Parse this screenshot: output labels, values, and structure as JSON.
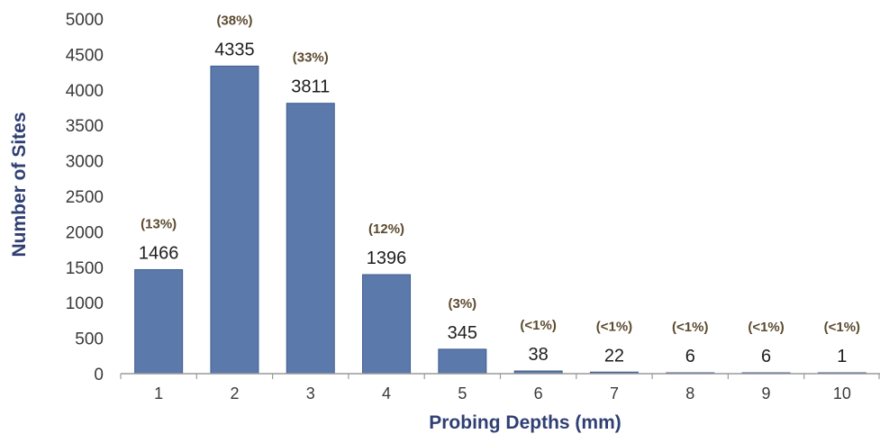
{
  "chart_data": {
    "type": "bar",
    "categories": [
      "1",
      "2",
      "3",
      "4",
      "5",
      "6",
      "7",
      "8",
      "9",
      "10"
    ],
    "values": [
      1466,
      4335,
      3811,
      1396,
      345,
      38,
      22,
      6,
      6,
      1
    ],
    "value_labels": [
      "1466",
      "4335",
      "3811",
      "1396",
      "345",
      "38",
      "22",
      "6",
      "6",
      "1"
    ],
    "percent_labels": [
      "(13%)",
      "(38%)",
      "(33%)",
      "(12%)",
      "(3%)",
      "(<1%)",
      "(<1%)",
      "(<1%)",
      "(<1%)",
      "(<1%)"
    ],
    "xlabel": "Probing Depths (mm)",
    "ylabel": "Number of Sites",
    "ylim": [
      0,
      5000
    ],
    "yticks": [
      "0",
      "500",
      "1000",
      "1500",
      "2000",
      "2500",
      "3000",
      "3500",
      "4000",
      "4500",
      "5000"
    ],
    "grid": false,
    "legend": "none",
    "colors": {
      "bar": "#5b79ab",
      "bar_edge": "#3f5d8e",
      "axis": "#9a9a9a",
      "title": "#2f3f73"
    }
  }
}
